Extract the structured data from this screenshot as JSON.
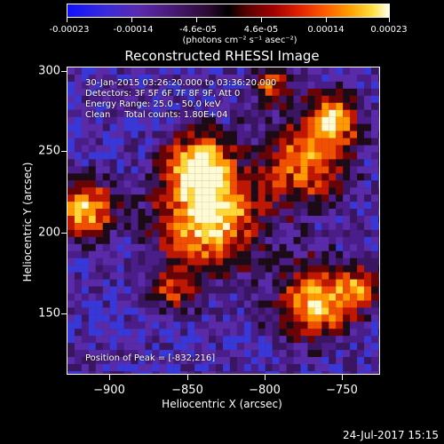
{
  "colorbar": {
    "labels": [
      "-0.00023",
      "-0.00014",
      "-4.6e-05",
      "4.6e-05",
      "0.00014",
      "0.00023"
    ],
    "units": "(photons cm⁻² s⁻¹ asec⁻²)"
  },
  "title": "Reconstructed RHESSI Image",
  "info": {
    "time": "30-Jan-2015 03:26:20.000 to 03:36:20.000",
    "detectors": "Detectors: 3F 5F 6F 7F 8F 9F, Att 0",
    "energy": "Energy Range: 25.0 - 50.0 keV",
    "clean": "Clean     Total counts: 1.80E+04",
    "peak": "Position of Peak = [-832,216]"
  },
  "axes": {
    "xlabel": "Heliocentric X (arcsec)",
    "ylabel": "Heliocentric Y (arcsec)",
    "xticks": [
      "−900",
      "−850",
      "−800",
      "−750"
    ],
    "yticks": [
      "300",
      "250",
      "200",
      "150"
    ]
  },
  "footer": {
    "date": "24-Jul-2017 15:15"
  },
  "colors": {
    "background": "#000000",
    "foreground": "#ffffff",
    "base": "#4b1d88"
  }
}
